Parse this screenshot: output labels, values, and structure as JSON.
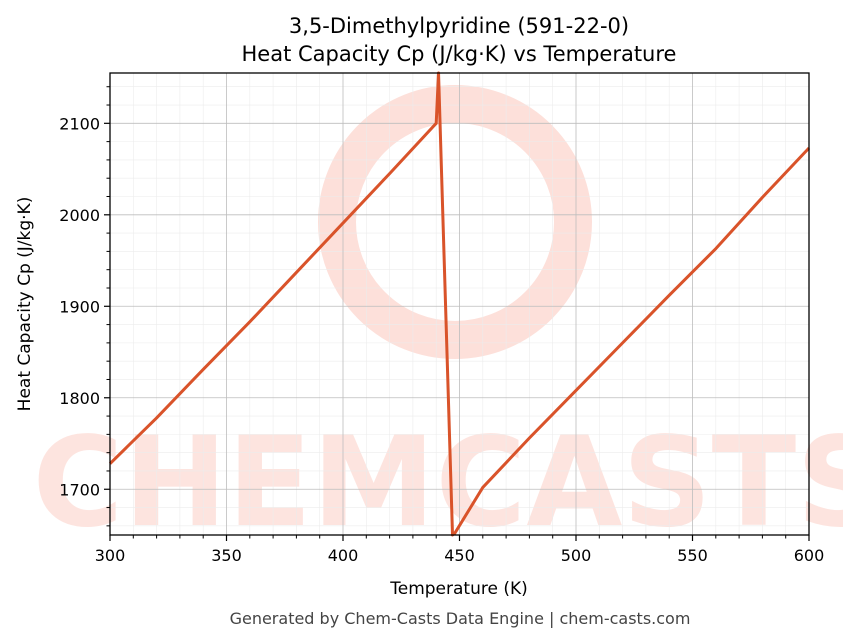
{
  "chart_data": {
    "type": "line",
    "title": "3,5-Dimethylpyridine (591-22-0)",
    "subtitle": "Heat Capacity Cp (J/kg·K) vs Temperature",
    "xlabel": "Temperature (K)",
    "ylabel": "Heat Capacity Cp (J/kg·K)",
    "xlim": [
      300,
      600
    ],
    "ylim": [
      1650,
      2155
    ],
    "xticks": [
      300,
      350,
      400,
      450,
      500,
      550,
      600
    ],
    "yticks": [
      1700,
      1800,
      1900,
      2000,
      2100
    ],
    "grid": true,
    "series": [
      {
        "x": [
          300,
          320,
          340,
          360,
          380,
          400,
          420,
          440,
          441,
          447,
          448,
          460,
          480,
          500,
          520,
          540,
          560,
          580,
          600
        ],
        "y": [
          1728,
          1778,
          1831,
          1883,
          1937,
          1991,
          2045,
          2100,
          2155,
          1650,
          1652,
          1702,
          1756,
          1808,
          1860,
          1912,
          1963,
          2019,
          2073
        ]
      }
    ],
    "line_color": "#d9532a"
  },
  "watermark": {
    "text": "CHEMCASTS",
    "color": "#fde0da"
  },
  "footer": "Generated by Chem-Casts Data Engine | chem-casts.com"
}
